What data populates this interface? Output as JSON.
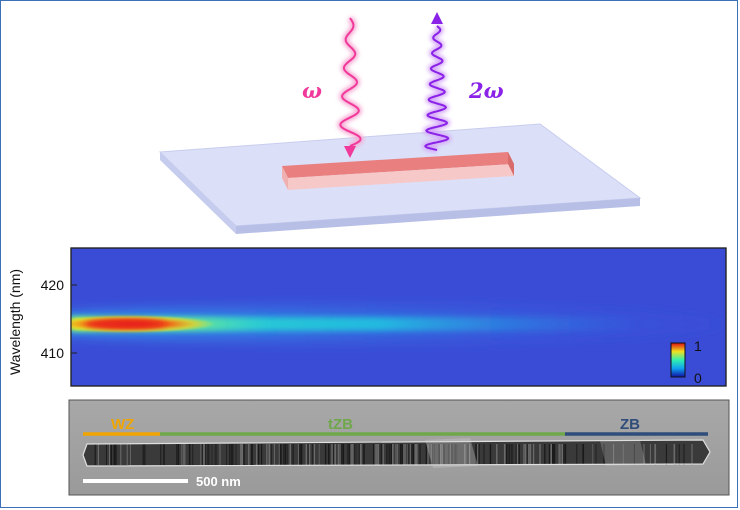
{
  "schematic": {
    "omega_label": "ω",
    "two_omega_label": "2ω",
    "omega_color": "#f0399a",
    "two_omega_color": "#8a22e8",
    "substrate_color": "#d9def8",
    "nanowire_color": "#f08a8a"
  },
  "spectrum_map": {
    "ylabel": "Wavelength (nm)",
    "yticks": [
      "420",
      "410"
    ],
    "colorbar": {
      "max_label": "1",
      "min_label": "0"
    },
    "colormap": "jet"
  },
  "tem": {
    "segments": [
      {
        "label": "WZ",
        "color": "#f0a500"
      },
      {
        "label": "tZB",
        "color": "#6fa84a"
      },
      {
        "label": "ZB",
        "color": "#2e4d7a"
      }
    ],
    "scale_bar_label": "500 nm"
  }
}
